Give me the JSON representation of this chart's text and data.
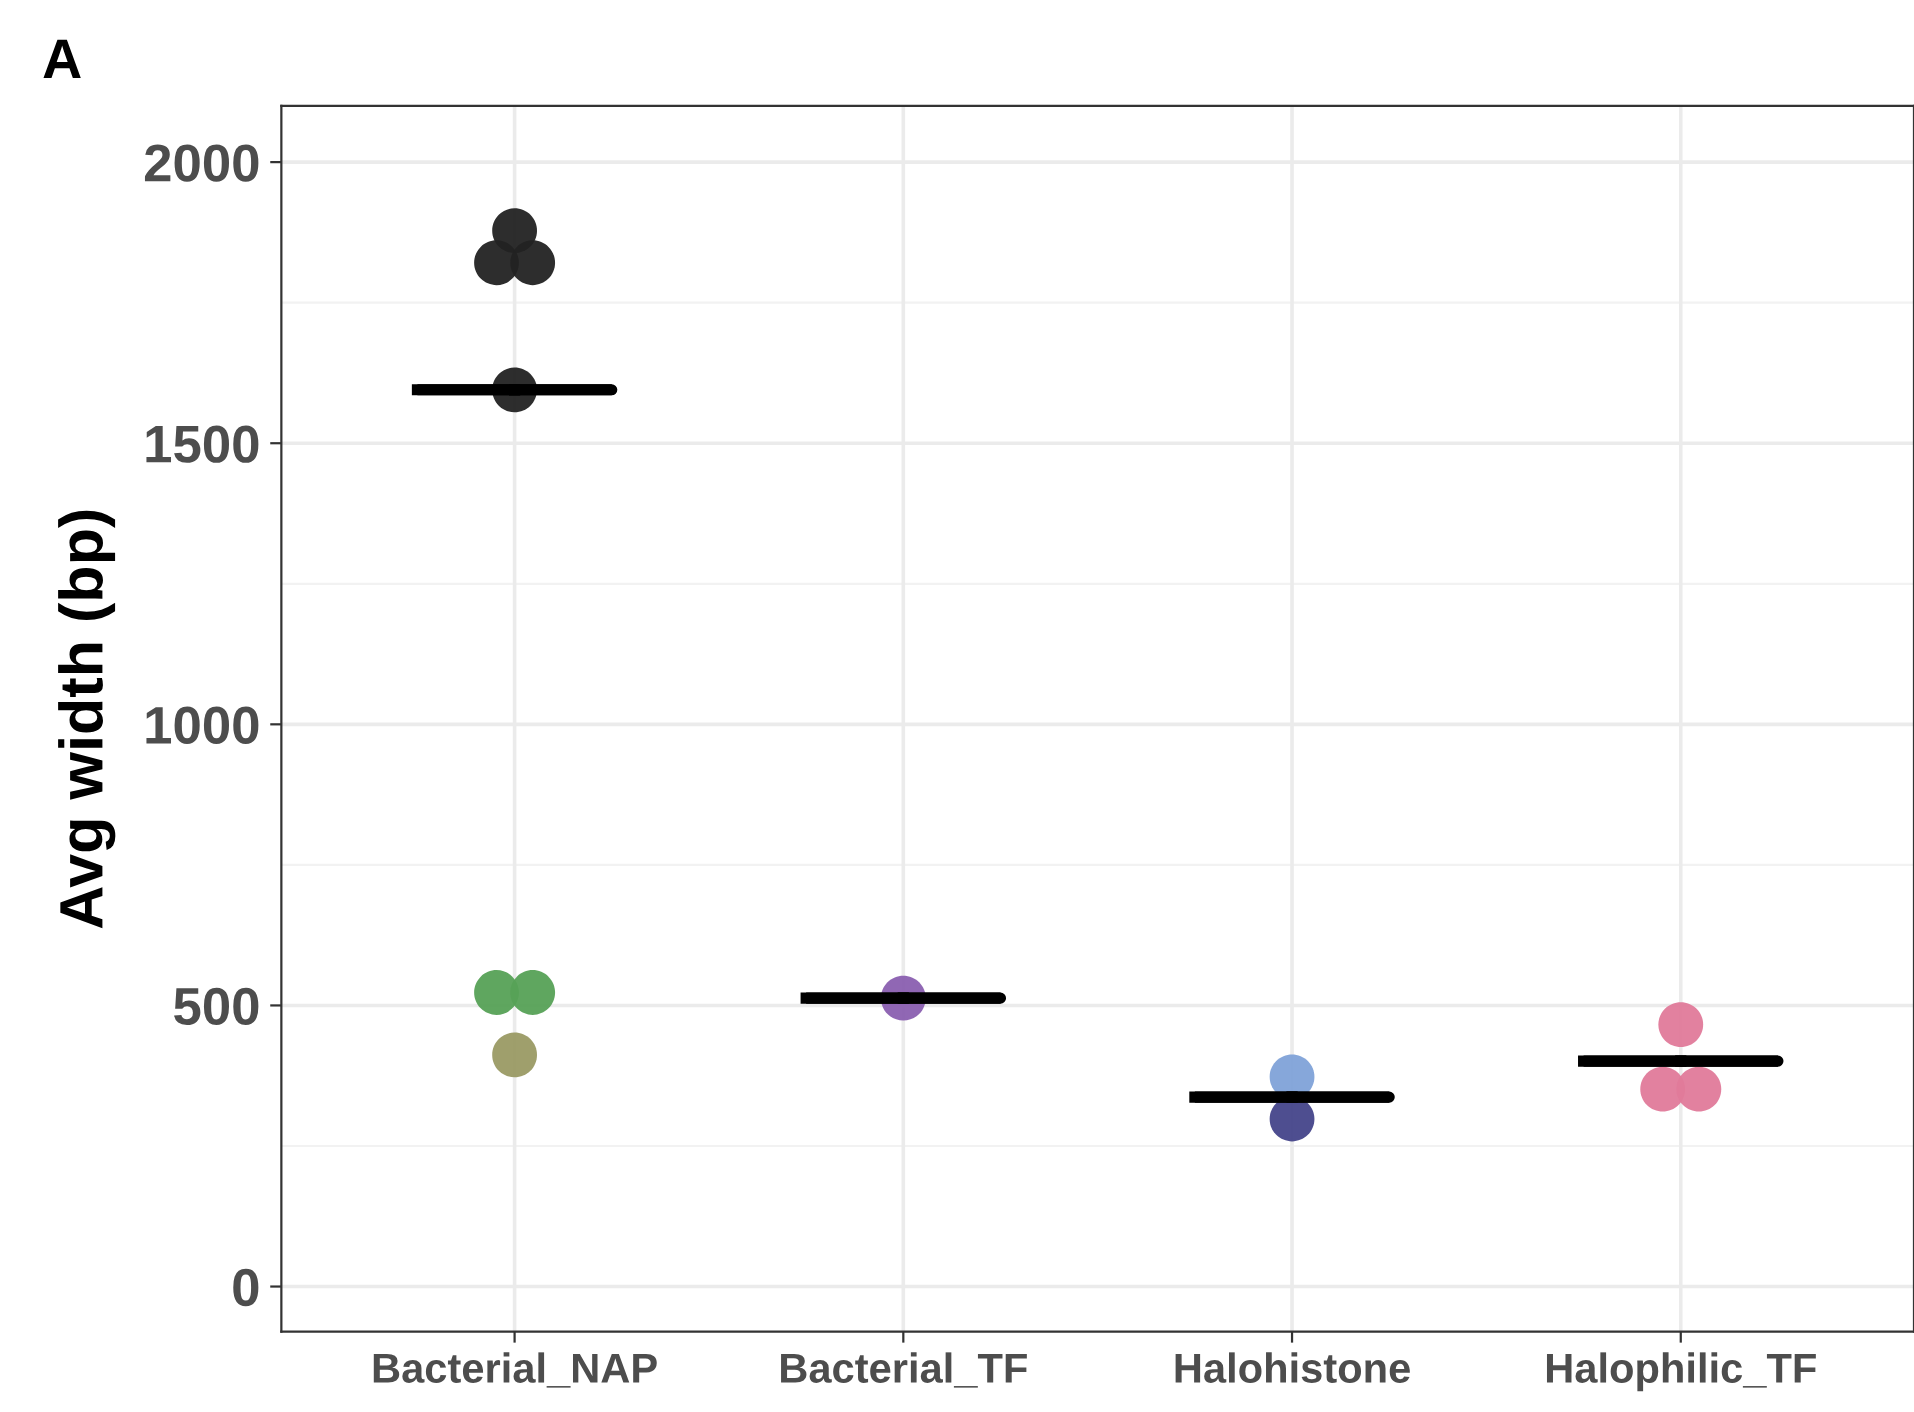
{
  "chart_data": {
    "type": "scatter",
    "ylabel": "Avg width (bp)",
    "categories": [
      "Bacterial_NAP",
      "Bacterial_TF",
      "Halohistone",
      "Halophilic_TF"
    ],
    "ylim": [
      -80,
      2100
    ],
    "yticks": [
      0,
      500,
      1000,
      1500,
      2000
    ],
    "grid": true,
    "marker": "circle",
    "annotations": [
      "A"
    ],
    "series": [
      {
        "color": "#222222",
        "x": [
          "Bacterial_NAP",
          "Bacterial_NAP",
          "Bacterial_NAP",
          "Bacterial_NAP"
        ],
        "values": [
          1878,
          1821,
          1821,
          1595
        ]
      },
      {
        "color": "#56a156",
        "x": [
          "Bacterial_NAP",
          "Bacterial_NAP"
        ],
        "values": [
          523,
          523
        ]
      },
      {
        "color": "#9a9a64",
        "x": [
          "Bacterial_NAP"
        ],
        "values": [
          412
        ]
      },
      {
        "color": "#8a5fb0",
        "x": [
          "Bacterial_TF"
        ],
        "values": [
          513
        ]
      },
      {
        "color": "#7fa2d8",
        "x": [
          "Halohistone"
        ],
        "values": [
          373
        ]
      },
      {
        "color": "#45458a",
        "x": [
          "Halohistone"
        ],
        "values": [
          298
        ]
      },
      {
        "color": "#e07a9a",
        "x": [
          "Halophilic_TF",
          "Halophilic_TF",
          "Halophilic_TF",
          "Halophilic_TF"
        ],
        "values": [
          466,
          null,
          351,
          351
        ]
      },
      {
        "type": "box",
        "color": "#000000",
        "boxes": [
          {
            "low": 1595,
            "q1": 1595,
            "median": 1595,
            "q3": 1595,
            "high": 1595
          },
          {
            "low": 513,
            "q1": 513,
            "median": 513,
            "q3": 513,
            "high": 513
          },
          {
            "low": 337,
            "q1": 337,
            "median": 337,
            "q3": 337,
            "high": 337
          },
          {
            "low": 401,
            "q1": 401,
            "median": 401,
            "q3": 401,
            "high": 401
          }
        ]
      }
    ]
  }
}
